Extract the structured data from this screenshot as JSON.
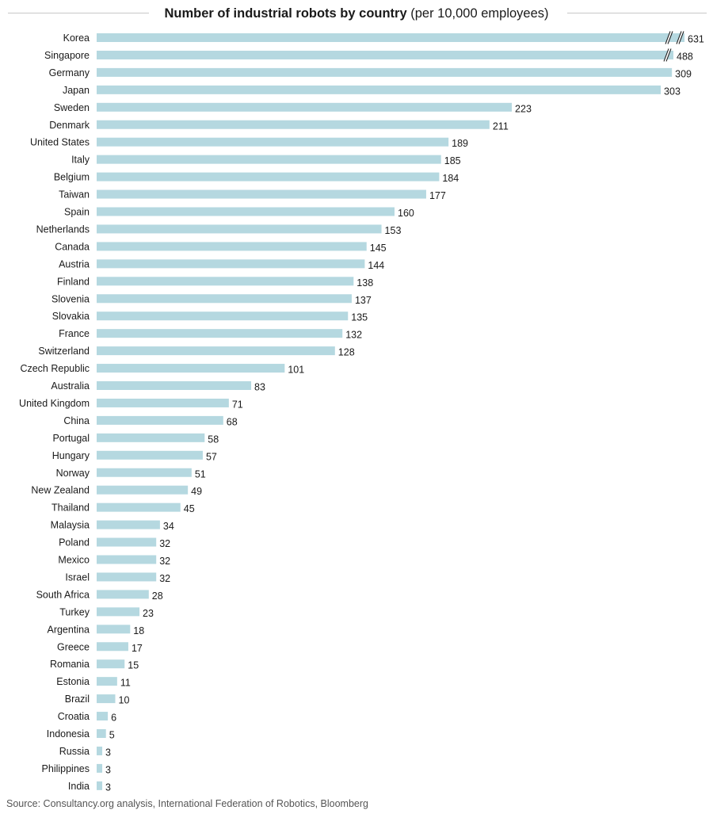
{
  "title": {
    "bold": "Number of industrial robots by country",
    "normal": "(per 10,000 employees)"
  },
  "source": "Source: Consultancy.org analysis, International Federation of Robotics, Bloomberg",
  "colors": {
    "bar": "#b5d8e0",
    "text": "#1a1a1a",
    "rule": "#c8c8c8"
  },
  "chart_data": {
    "type": "bar",
    "orientation": "horizontal",
    "axis_break": [
      "Korea",
      "Singapore"
    ],
    "categories": [
      "Korea",
      "Singapore",
      "Germany",
      "Japan",
      "Sweden",
      "Denmark",
      "United States",
      "Italy",
      "Belgium",
      "Taiwan",
      "Spain",
      "Netherlands",
      "Canada",
      "Austria",
      "Finland",
      "Slovenia",
      "Slovakia",
      "France",
      "Switzerland",
      "Czech Republic",
      "Australia",
      "United Kingdom",
      "China",
      "Portugal",
      "Hungary",
      "Norway",
      "New Zealand",
      "Thailand",
      "Malaysia",
      "Poland",
      "Mexico",
      "Israel",
      "South Africa",
      "Turkey",
      "Argentina",
      "Greece",
      "Romania",
      "Estonia",
      "Brazil",
      "Croatia",
      "Indonesia",
      "Russia",
      "Philippines",
      "India"
    ],
    "values": [
      631,
      488,
      309,
      303,
      223,
      211,
      189,
      185,
      184,
      177,
      160,
      153,
      145,
      144,
      138,
      137,
      135,
      132,
      128,
      101,
      83,
      71,
      68,
      58,
      57,
      51,
      49,
      45,
      34,
      32,
      32,
      32,
      28,
      23,
      18,
      17,
      15,
      11,
      10,
      6,
      5,
      3,
      3,
      3
    ]
  }
}
